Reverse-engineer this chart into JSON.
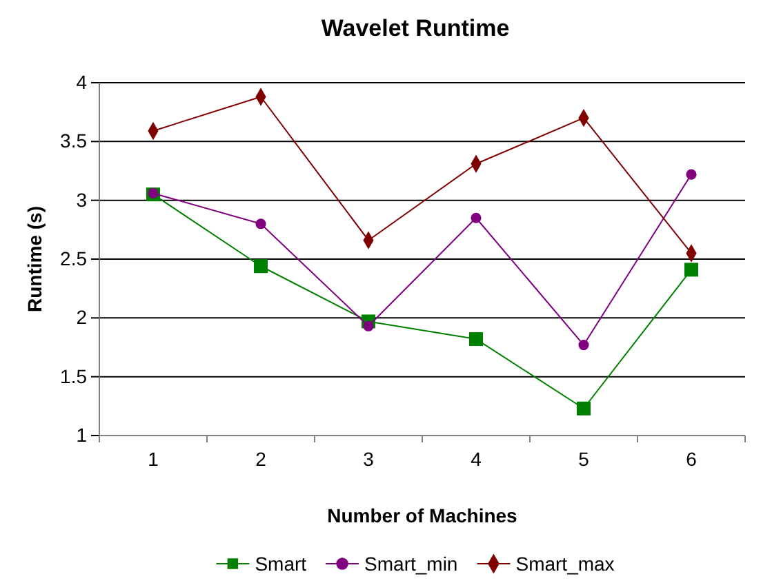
{
  "chart_data": {
    "type": "line",
    "title": "Wavelet Runtime",
    "xlabel": "Number of Machines",
    "ylabel": "Runtime (s)",
    "categories": [
      "1",
      "2",
      "3",
      "4",
      "5",
      "6"
    ],
    "series": [
      {
        "name": "Smart",
        "color": "#008000",
        "marker": "square",
        "values": [
          3.05,
          2.44,
          1.97,
          1.82,
          1.23,
          2.41
        ]
      },
      {
        "name": "Smart_min",
        "color": "#800080",
        "marker": "circle",
        "values": [
          3.06,
          2.8,
          1.93,
          2.85,
          1.77,
          3.22
        ]
      },
      {
        "name": "Smart_max",
        "color": "#800000",
        "marker": "diamond",
        "values": [
          3.59,
          3.88,
          2.66,
          3.31,
          3.7,
          2.55
        ]
      }
    ],
    "ylim": [
      1,
      4
    ],
    "yticks": [
      1,
      1.5,
      2,
      2.5,
      3,
      3.5,
      4
    ],
    "grid": "y",
    "legend": "bottom"
  }
}
